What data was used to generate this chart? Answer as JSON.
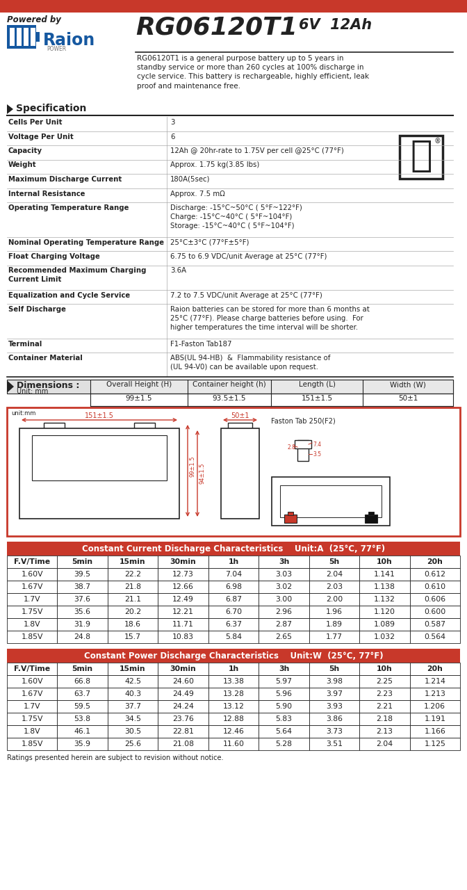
{
  "title_model": "RG06120T1",
  "title_voltage": "6V  12Ah",
  "powered_by": "Powered by",
  "description": "RG06120T1 is a general purpose battery up to 5 years in\nstandby service or more than 260 cycles at 100% discharge in\ncycle service. This battery is rechargeable, highly efficient, leak\nproof and maintenance free.",
  "spec_title": "Specification",
  "specs": [
    [
      "Cells Per Unit",
      "3",
      1
    ],
    [
      "Voltage Per Unit",
      "6",
      1
    ],
    [
      "Capacity",
      "12Ah @ 20hr-rate to 1.75V per cell @25°C (77°F)",
      1
    ],
    [
      "Weight",
      "Approx. 1.75 kg(3.85 lbs)",
      1
    ],
    [
      "Maximum Discharge Current",
      "180A(5sec)",
      1
    ],
    [
      "Internal Resistance",
      "Approx. 7.5 mΩ",
      1
    ],
    [
      "Operating Temperature Range",
      "Discharge: -15°C~50°C ( 5°F~122°F)\nCharge: -15°C~40°C ( 5°F~104°F)\nStorage: -15°C~40°C ( 5°F~104°F)",
      3
    ],
    [
      "Nominal Operating Temperature Range",
      "25°C±3°C (77°F±5°F)",
      1
    ],
    [
      "Float Charging Voltage",
      "6.75 to 6.9 VDC/unit Average at 25°C (77°F)",
      1
    ],
    [
      "Recommended Maximum Charging\nCurrent Limit",
      "3.6A",
      2
    ],
    [
      "Equalization and Cycle Service",
      "7.2 to 7.5 VDC/unit Average at 25°C (77°F)",
      1
    ],
    [
      "Self Discharge",
      "Raion batteries can be stored for more than 6 months at\n25°C (77°F). Please charge batteries before using.  For\nhigher temperatures the time interval will be shorter.",
      3
    ],
    [
      "Terminal",
      "F1-Faston Tab187",
      1
    ],
    [
      "Container Material",
      "ABS(UL 94-HB)  &  Flammability resistance of\n(UL 94-V0) can be available upon request.",
      2
    ]
  ],
  "dim_title": "Dimensions :",
  "dim_unit": "Unit: mm",
  "dim_headers": [
    "Overall Height (H)",
    "Container height (h)",
    "Length (L)",
    "Width (W)"
  ],
  "dim_values": [
    "99±1.5",
    "93.5±1.5",
    "151±1.5",
    "50±1"
  ],
  "cc_title": "Constant Current Discharge Characteristics",
  "cc_unit": "Unit:A  (25°C, 77°F)",
  "cc_headers": [
    "F.V/Time",
    "5min",
    "15min",
    "30min",
    "1h",
    "3h",
    "5h",
    "10h",
    "20h"
  ],
  "cc_data": [
    [
      "1.60V",
      "39.5",
      "22.2",
      "12.73",
      "7.04",
      "3.03",
      "2.04",
      "1.141",
      "0.612"
    ],
    [
      "1.67V",
      "38.7",
      "21.8",
      "12.66",
      "6.98",
      "3.02",
      "2.03",
      "1.138",
      "0.610"
    ],
    [
      "1.7V",
      "37.6",
      "21.1",
      "12.49",
      "6.87",
      "3.00",
      "2.00",
      "1.132",
      "0.606"
    ],
    [
      "1.75V",
      "35.6",
      "20.2",
      "12.21",
      "6.70",
      "2.96",
      "1.96",
      "1.120",
      "0.600"
    ],
    [
      "1.8V",
      "31.9",
      "18.6",
      "11.71",
      "6.37",
      "2.87",
      "1.89",
      "1.089",
      "0.587"
    ],
    [
      "1.85V",
      "24.8",
      "15.7",
      "10.83",
      "5.84",
      "2.65",
      "1.77",
      "1.032",
      "0.564"
    ]
  ],
  "cp_title": "Constant Power Discharge Characteristics",
  "cp_unit": "Unit:W  (25°C, 77°F)",
  "cp_headers": [
    "F.V/Time",
    "5min",
    "15min",
    "30min",
    "1h",
    "3h",
    "5h",
    "10h",
    "20h"
  ],
  "cp_data": [
    [
      "1.60V",
      "66.8",
      "42.5",
      "24.60",
      "13.38",
      "5.97",
      "3.98",
      "2.25",
      "1.214"
    ],
    [
      "1.67V",
      "63.7",
      "40.3",
      "24.49",
      "13.28",
      "5.96",
      "3.97",
      "2.23",
      "1.213"
    ],
    [
      "1.7V",
      "59.5",
      "37.7",
      "24.24",
      "13.12",
      "5.90",
      "3.93",
      "2.21",
      "1.206"
    ],
    [
      "1.75V",
      "53.8",
      "34.5",
      "23.76",
      "12.88",
      "5.83",
      "3.86",
      "2.18",
      "1.191"
    ],
    [
      "1.8V",
      "46.1",
      "30.5",
      "22.81",
      "12.46",
      "5.64",
      "3.73",
      "2.13",
      "1.166"
    ],
    [
      "1.85V",
      "35.9",
      "25.6",
      "21.08",
      "11.60",
      "5.28",
      "3.51",
      "2.04",
      "1.125"
    ]
  ],
  "footer": "Ratings presented herein are subject to revision without notice.",
  "red_color": "#c8382a",
  "bg_color": "#ffffff",
  "line_color": "#555555",
  "dark_color": "#222222"
}
